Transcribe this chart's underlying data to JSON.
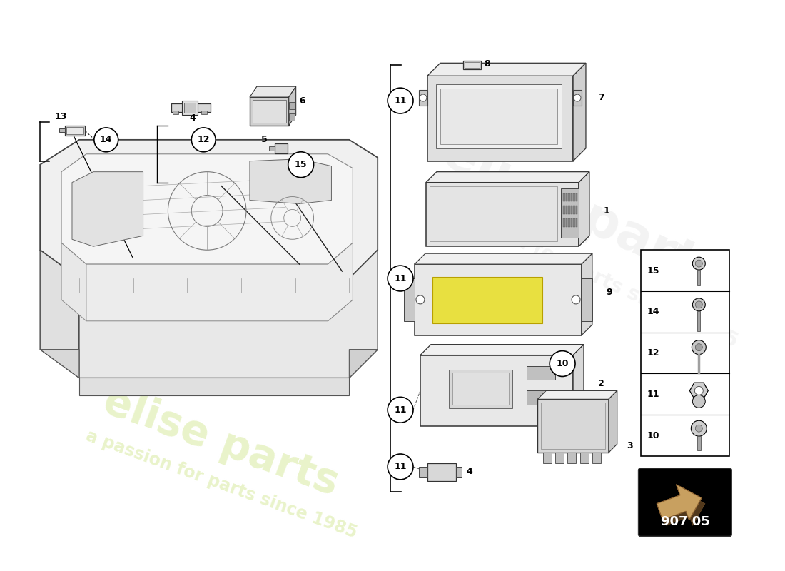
{
  "bg_color": "#ffffff",
  "watermark1": "elise parts",
  "watermark2": "a passion for parts since 1985",
  "wm_color": "#d4e896",
  "wm_alpha": 0.5,
  "page_code": "907 05",
  "legend_nums": [
    15,
    14,
    12,
    11,
    10
  ],
  "arrow_color": "#c8a060",
  "arrow_shadow": "#8a6030"
}
